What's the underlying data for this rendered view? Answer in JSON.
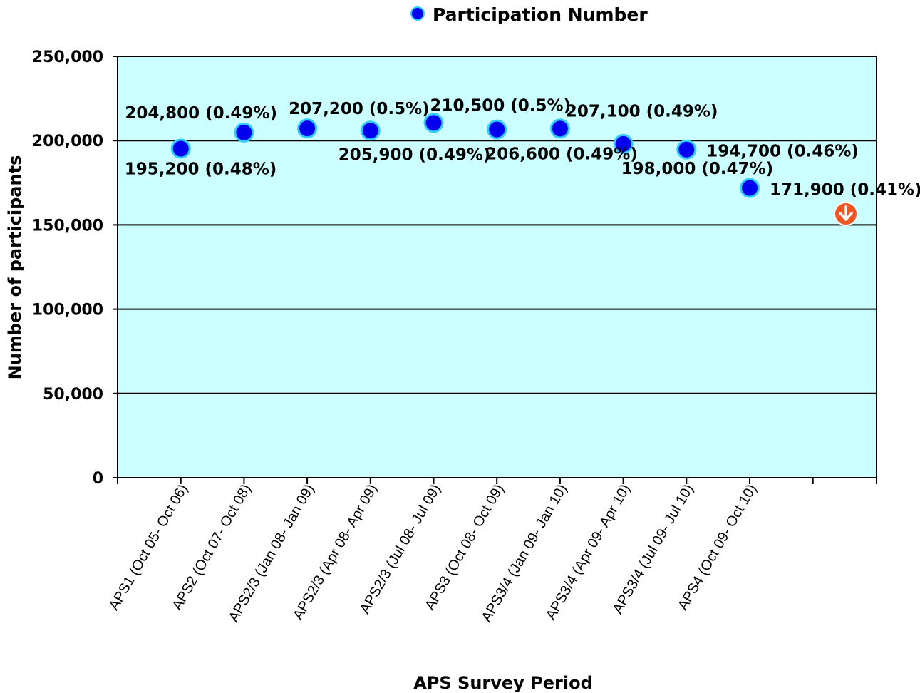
{
  "chart_data": {
    "type": "scatter",
    "xlabel": "APS Survey Period",
    "ylabel": "Number of participants",
    "ylim": [
      0,
      250000
    ],
    "yticks": [
      0,
      50000,
      100000,
      150000,
      200000,
      250000
    ],
    "ytick_labels": [
      "0",
      "50,000",
      "100,000",
      "150,000",
      "200,000",
      "250,000"
    ],
    "grid": "horizontal",
    "legend": "top-center",
    "plot_background": "#ccffff",
    "marker_color": "#0000ee",
    "marker_edge_color": "#33ccff",
    "categories": [
      "APS1 (Oct 05- Oct 06)",
      "APS2 (Oct 07- Oct 08)",
      "APS2/3 (Jan 08- Jan 09)",
      "APS2/3 (Apr 08- Apr 09)",
      "APS2/3 (Jul 08- Jul 09)",
      "APS3 (Oct 08- Oct 09)",
      "APS3/4 (Jan 09- Jan 10)",
      "APS3/4 (Apr 09- Apr 10)",
      "APS3/4 (Jul 09- Jul 10)",
      "APS4 (Oct 09- Oct 10)"
    ],
    "series": [
      {
        "name": "Participation Number",
        "values": [
          195200,
          204800,
          207200,
          205900,
          210500,
          206600,
          207100,
          198000,
          194700,
          171900
        ],
        "labels": [
          "195,200 (0.48%)",
          "204,800 (0.49%)",
          "207,200 (0.5%)",
          "205,900 (0.49%)",
          "210,500 (0.5%)",
          "206,600 (0.49%)",
          "207,100 (0.49%)",
          "198,000 (0.47%)",
          "194,700 (0.46%)",
          "171,900 (0.41%)"
        ]
      }
    ],
    "annotation_icon": "down-arrow-icon",
    "annotation_icon_color": "#ee5522"
  }
}
